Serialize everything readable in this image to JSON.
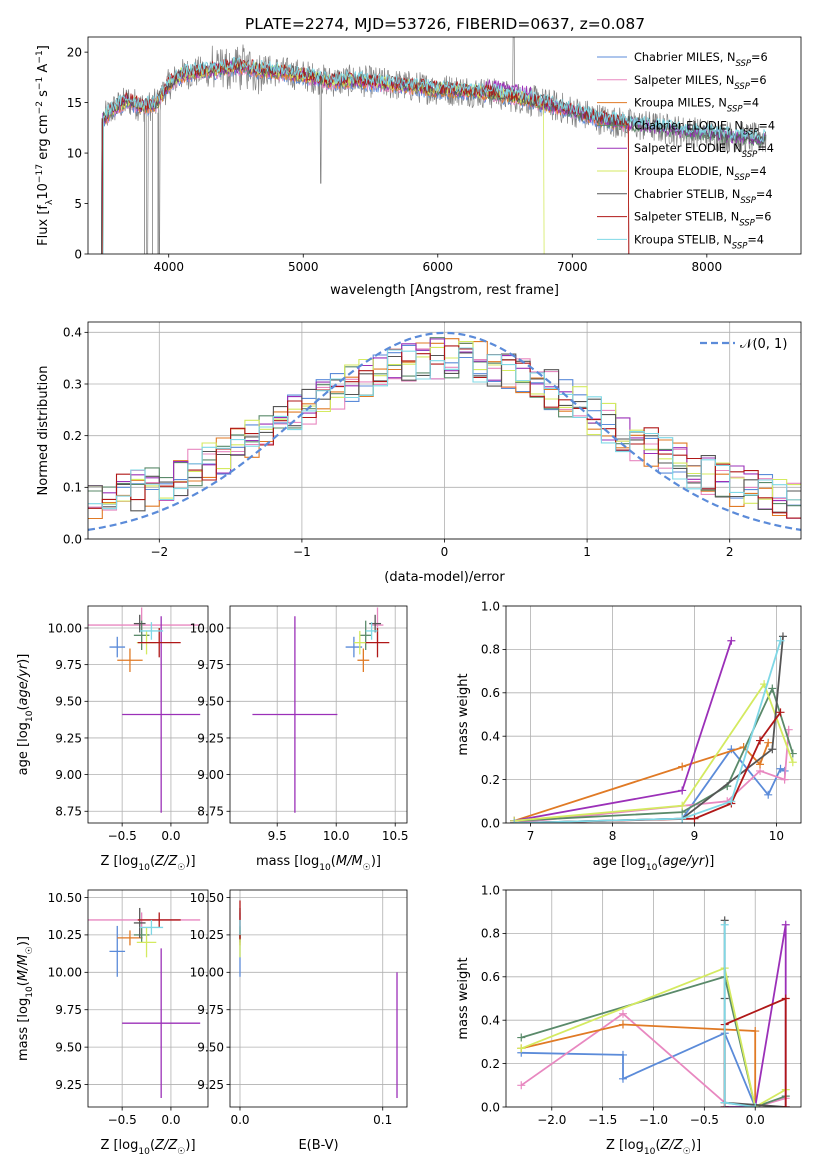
{
  "figure": {
    "title": "PLATE=2274, MJD=53726, FIBERID=0637, z=0.087"
  },
  "models": [
    {
      "name": "Chabrier MILES",
      "nssp": "6",
      "color": "#5b8bd9"
    },
    {
      "name": "Salpeter MILES",
      "nssp": "6",
      "color": "#e888c0"
    },
    {
      "name": "Kroupa MILES",
      "nssp": "4",
      "color": "#e07a25"
    },
    {
      "name": "Chabrier ELODIE",
      "nssp": "4",
      "color": "#5a8a6a"
    },
    {
      "name": "Salpeter ELODIE",
      "nssp": "4",
      "color": "#9b30b8"
    },
    {
      "name": "Kroupa ELODIE",
      "nssp": "4",
      "color": "#d4ea60"
    },
    {
      "name": "Chabrier STELIB",
      "nssp": "4",
      "color": "#555555"
    },
    {
      "name": "Salpeter STELIB",
      "nssp": "6",
      "color": "#b01818"
    },
    {
      "name": "Kroupa STELIB",
      "nssp": "4",
      "color": "#7fd8e6"
    }
  ],
  "chart_data": [
    {
      "id": "spectrum",
      "type": "line",
      "xlabel": "wavelength [Angstrom, rest frame]",
      "ylabel": "Flux [f_λ 10^-17 erg cm^-2 s^-1 A^-1]",
      "xlim": [
        3400,
        8700
      ],
      "ylim": [
        0,
        21.5
      ],
      "xticks": [
        4000,
        5000,
        6000,
        7000,
        8000
      ],
      "yticks": [
        0,
        5,
        10,
        15,
        20
      ],
      "grid": false,
      "legend": "top-right",
      "data_shape": [
        [
          3500,
          13.2
        ],
        [
          3600,
          14.5
        ],
        [
          3700,
          15.2
        ],
        [
          3800,
          14.6
        ],
        [
          3900,
          14.8
        ],
        [
          4000,
          16.8
        ],
        [
          4100,
          17.8
        ],
        [
          4200,
          18.0
        ],
        [
          4300,
          18.1
        ],
        [
          4400,
          18.4
        ],
        [
          4500,
          18.6
        ],
        [
          4600,
          18.4
        ],
        [
          4800,
          18.1
        ],
        [
          5000,
          17.7
        ],
        [
          5200,
          17.1
        ],
        [
          5400,
          17.2
        ],
        [
          5600,
          16.9
        ],
        [
          5800,
          16.6
        ],
        [
          6000,
          16.3
        ],
        [
          6200,
          16.2
        ],
        [
          6400,
          15.9
        ],
        [
          6600,
          15.5
        ],
        [
          6800,
          14.9
        ],
        [
          7000,
          14.2
        ],
        [
          7200,
          13.4
        ],
        [
          7400,
          12.9
        ],
        [
          7600,
          12.6
        ],
        [
          7800,
          12.2
        ],
        [
          8000,
          11.9
        ],
        [
          8200,
          11.6
        ],
        [
          8400,
          11.4
        ]
      ],
      "dips": [
        [
          3820,
          0
        ],
        [
          3880,
          0
        ],
        [
          3920,
          0
        ]
      ]
    },
    {
      "id": "residuals",
      "type": "line",
      "xlabel": "(data-model)/error",
      "ylabel": "Normed distribution",
      "xlim": [
        -2.5,
        2.5
      ],
      "ylim": [
        0,
        0.42
      ],
      "xticks": [
        -2,
        -1,
        0,
        1,
        2
      ],
      "yticks": [
        0.0,
        0.1,
        0.2,
        0.3,
        0.4
      ],
      "grid": true,
      "legend_label": "𝒩(0, 1)",
      "series": "normal pdf plus 9 step histograms"
    },
    {
      "id": "age-vs-Z",
      "type": "scatter",
      "xlabel": "Z [log10(Z/Z☉)]",
      "ylabel": "age  [log10(age/yr)]",
      "xlim": [
        -0.85,
        0.38
      ],
      "ylim": [
        8.67,
        10.15
      ],
      "xticks": [
        -0.5,
        0.0
      ],
      "yticks": [
        8.75,
        9.0,
        9.25,
        9.5,
        9.75,
        10.0
      ],
      "grid": true,
      "points": [
        {
          "model": 0,
          "x": -0.55,
          "y": 9.87,
          "xerr": 0.08,
          "yerr": 0.07
        },
        {
          "model": 1,
          "x": -0.3,
          "y": 10.02,
          "xerr": 0.6,
          "yerr": 0.12
        },
        {
          "model": 2,
          "x": -0.42,
          "y": 9.78,
          "xerr": 0.13,
          "yerr": 0.08
        },
        {
          "model": 3,
          "x": -0.3,
          "y": 9.95,
          "xerr": 0.08,
          "yerr": 0.1
        },
        {
          "model": 4,
          "x": -0.1,
          "y": 9.41,
          "xerr": 0.4,
          "yerr": 0.67
        },
        {
          "model": 5,
          "x": -0.25,
          "y": 9.9,
          "xerr": 0.1,
          "yerr": 0.08
        },
        {
          "model": 6,
          "x": -0.32,
          "y": 10.03,
          "xerr": 0.06,
          "yerr": 0.06
        },
        {
          "model": 7,
          "x": -0.12,
          "y": 9.9,
          "xerr": 0.22,
          "yerr": 0.1
        },
        {
          "model": 8,
          "x": -0.2,
          "y": 9.98,
          "xerr": 0.12,
          "yerr": 0.06
        }
      ]
    },
    {
      "id": "age-vs-mass",
      "type": "scatter",
      "xlabel": "mass [log10(M/M☉)]",
      "ylabel": "",
      "xlim": [
        9.1,
        10.6
      ],
      "ylim": [
        8.67,
        10.15
      ],
      "xticks": [
        9.5,
        10.0,
        10.5
      ],
      "yticks": [
        8.75,
        9.0,
        9.25,
        9.5,
        9.75,
        10.0
      ],
      "grid": true,
      "points": [
        {
          "model": 0,
          "x": 10.15,
          "y": 9.87,
          "xerr": 0.07,
          "yerr": 0.07
        },
        {
          "model": 1,
          "x": 10.35,
          "y": 10.02,
          "xerr": 0.05,
          "yerr": 0.12
        },
        {
          "model": 2,
          "x": 10.23,
          "y": 9.78,
          "xerr": 0.05,
          "yerr": 0.08
        },
        {
          "model": 3,
          "x": 10.25,
          "y": 9.95,
          "xerr": 0.05,
          "yerr": 0.1
        },
        {
          "model": 4,
          "x": 9.65,
          "y": 9.41,
          "xerr": 0.36,
          "yerr": 0.67
        },
        {
          "model": 5,
          "x": 10.2,
          "y": 9.9,
          "xerr": 0.05,
          "yerr": 0.08
        },
        {
          "model": 6,
          "x": 10.33,
          "y": 10.03,
          "xerr": 0.05,
          "yerr": 0.06
        },
        {
          "model": 7,
          "x": 10.35,
          "y": 9.9,
          "xerr": 0.1,
          "yerr": 0.1
        },
        {
          "model": 8,
          "x": 10.3,
          "y": 9.98,
          "xerr": 0.05,
          "yerr": 0.06
        }
      ]
    },
    {
      "id": "weight-vs-age",
      "type": "line",
      "xlabel": "age  [log10(age/yr)]",
      "ylabel": "mass weight",
      "xlim": [
        6.7,
        10.3
      ],
      "ylim": [
        0,
        1.0
      ],
      "xticks": [
        7,
        8,
        9,
        10
      ],
      "yticks": [
        0.0,
        0.2,
        0.4,
        0.6,
        0.8,
        1.0
      ],
      "grid": true,
      "series": [
        {
          "model": 0,
          "x": [
            6.8,
            8.85,
            9.45,
            9.9,
            10.05,
            10.1
          ],
          "y": [
            0.0,
            0.02,
            0.34,
            0.13,
            0.25,
            0.24
          ]
        },
        {
          "model": 1,
          "x": [
            6.8,
            9.4,
            9.8,
            10.1,
            10.15
          ],
          "y": [
            0.0,
            0.1,
            0.24,
            0.2,
            0.43
          ]
        },
        {
          "model": 2,
          "x": [
            6.8,
            8.85,
            9.6,
            9.8,
            9.9
          ],
          "y": [
            0.01,
            0.26,
            0.35,
            0.27,
            0.37
          ]
        },
        {
          "model": 3,
          "x": [
            6.8,
            8.85,
            9.4,
            9.95,
            10.2
          ],
          "y": [
            0.01,
            0.05,
            0.17,
            0.62,
            0.32
          ]
        },
        {
          "model": 4,
          "x": [
            6.8,
            8.85,
            9.45
          ],
          "y": [
            0.01,
            0.15,
            0.84
          ]
        },
        {
          "model": 5,
          "x": [
            6.8,
            8.85,
            9.85,
            10.2
          ],
          "y": [
            0.01,
            0.08,
            0.64,
            0.28
          ]
        },
        {
          "model": 6,
          "x": [
            6.8,
            8.85,
            9.95,
            10.08
          ],
          "y": [
            0.0,
            0.02,
            0.34,
            0.86
          ]
        },
        {
          "model": 7,
          "x": [
            6.8,
            9.0,
            9.45,
            9.8,
            10.05
          ],
          "y": [
            0.0,
            0.02,
            0.09,
            0.38,
            0.51
          ]
        },
        {
          "model": 8,
          "x": [
            6.8,
            8.85,
            9.45,
            10.05
          ],
          "y": [
            0.0,
            0.02,
            0.1,
            0.84
          ]
        }
      ]
    },
    {
      "id": "mass-vs-Z",
      "type": "scatter",
      "xlabel": "Z [log10(Z/Z☉)]",
      "ylabel": "mass [log10(M/M☉)]",
      "xlim": [
        -0.85,
        0.38
      ],
      "ylim": [
        9.1,
        10.55
      ],
      "xticks": [
        -0.5,
        0.0
      ],
      "yticks": [
        9.25,
        9.5,
        9.75,
        10.0,
        10.25,
        10.5
      ],
      "grid": true,
      "points": [
        {
          "model": 0,
          "x": -0.55,
          "y": 10.14,
          "xerr": 0.08,
          "yerr": 0.17
        },
        {
          "model": 1,
          "x": -0.3,
          "y": 10.35,
          "xerr": 0.6,
          "yerr": 0.05
        },
        {
          "model": 2,
          "x": -0.42,
          "y": 10.23,
          "xerr": 0.13,
          "yerr": 0.05
        },
        {
          "model": 3,
          "x": -0.3,
          "y": 10.25,
          "xerr": 0.08,
          "yerr": 0.05
        },
        {
          "model": 4,
          "x": -0.1,
          "y": 9.66,
          "xerr": 0.4,
          "yerr": 0.5
        },
        {
          "model": 5,
          "x": -0.25,
          "y": 10.2,
          "xerr": 0.1,
          "yerr": 0.1
        },
        {
          "model": 6,
          "x": -0.32,
          "y": 10.33,
          "xerr": 0.06,
          "yerr": 0.1
        },
        {
          "model": 7,
          "x": -0.12,
          "y": 10.35,
          "xerr": 0.22,
          "yerr": 0.05
        },
        {
          "model": 8,
          "x": -0.2,
          "y": 10.3,
          "xerr": 0.12,
          "yerr": 0.05
        }
      ]
    },
    {
      "id": "mass-vs-ebv",
      "type": "scatter",
      "xlabel": "E(B-V)",
      "ylabel": "",
      "xlim": [
        -0.007,
        0.117
      ],
      "ylim": [
        9.1,
        10.55
      ],
      "xticks": [
        0.0,
        0.1
      ],
      "yticks": [
        9.25,
        9.5,
        9.75,
        10.0,
        10.25,
        10.5
      ],
      "grid": true,
      "points": [
        {
          "model": 0,
          "x": 0.0,
          "y": 10.14,
          "xerr": 0.0,
          "yerr": 0.17
        },
        {
          "model": 1,
          "x": 0.0,
          "y": 10.35,
          "xerr": 0.0,
          "yerr": 0.05
        },
        {
          "model": 2,
          "x": 0.0,
          "y": 10.23,
          "xerr": 0.0,
          "yerr": 0.05
        },
        {
          "model": 3,
          "x": 0.0,
          "y": 10.25,
          "xerr": 0.0,
          "yerr": 0.05
        },
        {
          "model": 4,
          "x": 0.11,
          "y": 9.58,
          "xerr": 0.0,
          "yerr": 0.42
        },
        {
          "model": 5,
          "x": 0.0,
          "y": 10.2,
          "xerr": 0.0,
          "yerr": 0.1
        },
        {
          "model": 6,
          "x": 0.0,
          "y": 10.33,
          "xerr": 0.0,
          "yerr": 0.1
        },
        {
          "model": 7,
          "x": 0.0,
          "y": 10.35,
          "xerr": 0.0,
          "yerr": 0.13
        },
        {
          "model": 8,
          "x": 0.0,
          "y": 10.3,
          "xerr": 0.0,
          "yerr": 0.05
        }
      ]
    },
    {
      "id": "weight-vs-Z",
      "type": "line",
      "xlabel": "Z [log10(Z/Z☉)]",
      "ylabel": "mass weight",
      "xlim": [
        -2.45,
        0.45
      ],
      "ylim": [
        0,
        1.0
      ],
      "xticks": [
        -2.0,
        -1.5,
        -1.0,
        -0.5,
        0.0
      ],
      "yticks": [
        0.0,
        0.2,
        0.4,
        0.6,
        0.8,
        1.0
      ],
      "grid": true,
      "series": [
        {
          "model": 0,
          "x": [
            -2.3,
            -1.3,
            -1.3,
            -0.3,
            0.0
          ],
          "y": [
            0.25,
            0.24,
            0.13,
            0.34,
            0.0
          ]
        },
        {
          "model": 1,
          "x": [
            -2.3,
            -1.3,
            -0.3,
            0.0,
            0.3
          ],
          "y": [
            0.1,
            0.43,
            0.02,
            0.0,
            0.04
          ]
        },
        {
          "model": 2,
          "x": [
            -2.3,
            -1.3,
            0.0,
            0.0
          ],
          "y": [
            0.27,
            0.38,
            0.35,
            0.0
          ]
        },
        {
          "model": 3,
          "x": [
            -2.3,
            -0.3,
            0.0,
            0.3
          ],
          "y": [
            0.32,
            0.6,
            0.0,
            0.05
          ]
        },
        {
          "model": 4,
          "x": [
            -0.3,
            0.0,
            0.3,
            0.3
          ],
          "y": [
            0.0,
            0.0,
            0.84,
            0.0
          ]
        },
        {
          "model": 5,
          "x": [
            -2.3,
            -0.3,
            0.0,
            0.3
          ],
          "y": [
            0.27,
            0.64,
            0.0,
            0.08
          ]
        },
        {
          "model": 6,
          "x": [
            -0.3,
            -0.3,
            -0.3,
            0.3
          ],
          "y": [
            0.86,
            0.5,
            0.02,
            0.0
          ]
        },
        {
          "model": 7,
          "x": [
            -0.3,
            -0.3,
            0.3,
            0.3
          ],
          "y": [
            0.0,
            0.38,
            0.5,
            0.0
          ]
        },
        {
          "model": 8,
          "x": [
            -0.3,
            -0.3,
            0.0
          ],
          "y": [
            0.84,
            0.02,
            0.0
          ]
        }
      ]
    }
  ]
}
